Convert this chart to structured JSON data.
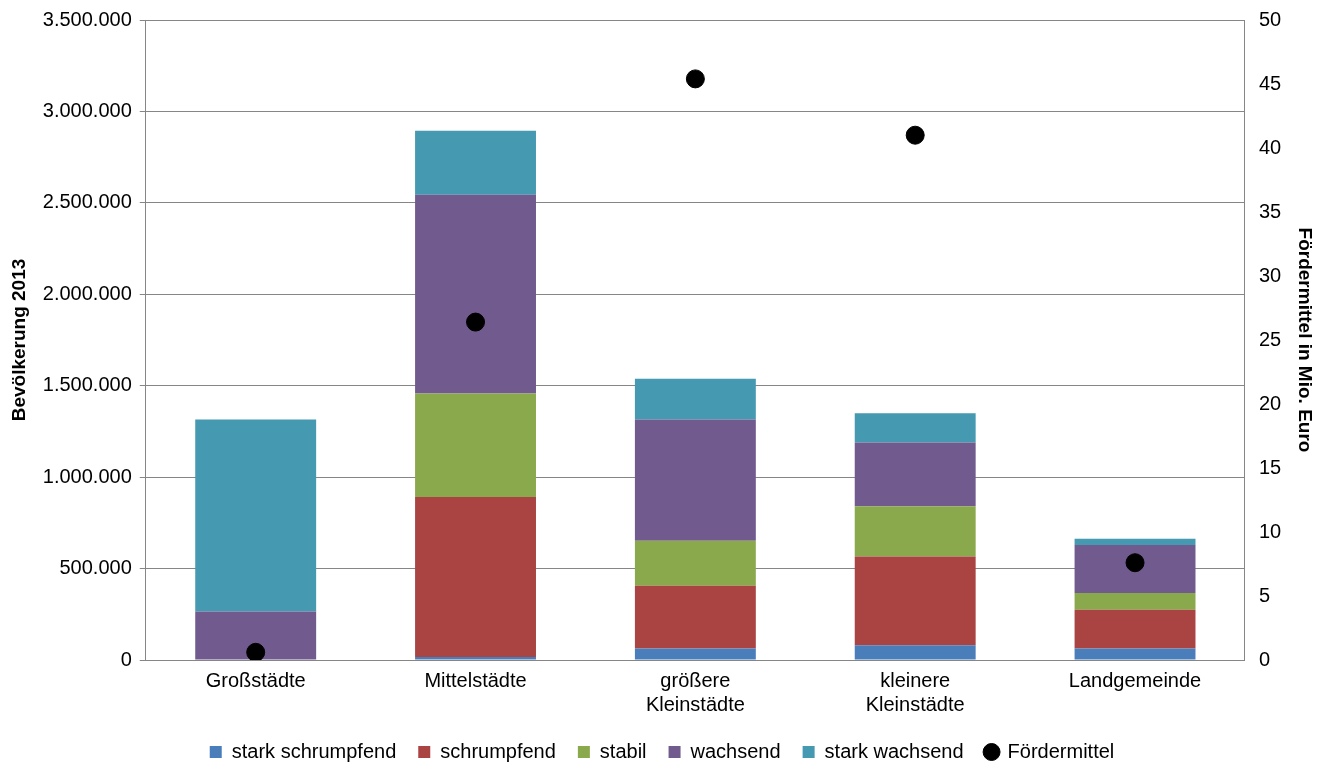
{
  "chart_data": {
    "type": "bar",
    "stacked": true,
    "ylabel": "Bevölkerung 2013",
    "y2label": "Fördermittel in Mio. Euro",
    "categories": [
      "Großstädte",
      "Mittelstädte",
      "größere Kleinstädte",
      "kleinere Kleinstädte",
      "Landgemeinde"
    ],
    "series": [
      {
        "name": "stark schrumpfend",
        "color": "#4a7ebb",
        "values": [
          0,
          17000,
          63000,
          80000,
          63000
        ]
      },
      {
        "name": "schrumpfend",
        "color": "#a94442",
        "values": [
          0,
          875000,
          343000,
          486000,
          212000
        ]
      },
      {
        "name": "stabil",
        "color": "#8aa84c",
        "values": [
          0,
          566000,
          246000,
          275000,
          91000
        ]
      },
      {
        "name": "wachsend",
        "color": "#715a8e",
        "values": [
          265000,
          1087000,
          663000,
          349000,
          263000
        ]
      },
      {
        "name": "stark wachsend",
        "color": "#4599b0",
        "values": [
          1050000,
          349000,
          223000,
          160000,
          34000
        ]
      },
      {
        "name": "Fördermittel",
        "type": "scatter",
        "axis": "y2",
        "marker": "circle",
        "color": "#000000",
        "x": [
          "Großstädte",
          "Mittelstädte",
          "größere Kleinstädte",
          "kleinere Kleinstädte",
          "Landgemeinde"
        ],
        "values": [
          0.6,
          26.4,
          45.4,
          41.0,
          7.6
        ]
      }
    ],
    "ylim": [
      0,
      3500000
    ],
    "yticks": [
      {
        "value": 0,
        "label": "0"
      },
      {
        "value": 500000,
        "label": "500.000"
      },
      {
        "value": 1000000,
        "label": "1.000.000"
      },
      {
        "value": 1500000,
        "label": "1.500.000"
      },
      {
        "value": 2000000,
        "label": "2.000.000"
      },
      {
        "value": 2500000,
        "label": "2.500.000"
      },
      {
        "value": 3000000,
        "label": "3.000.000"
      },
      {
        "value": 3500000,
        "label": "3.500.000"
      }
    ],
    "y2lim": [
      0,
      50
    ],
    "y2ticks": [
      0,
      5,
      10,
      15,
      20,
      25,
      30,
      35,
      40,
      45,
      50
    ],
    "grid": "y",
    "legend": "bottom"
  }
}
